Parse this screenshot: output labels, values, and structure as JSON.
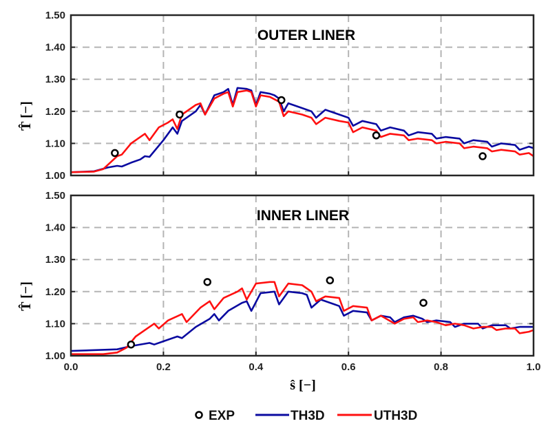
{
  "colors": {
    "exp": "#000000",
    "th3d": "#0a0aa0",
    "uth3d": "#ff1010",
    "grid": "#b4b4b4",
    "axis": "#262626"
  },
  "legend": [
    {
      "label": "EXP",
      "marker": "circle"
    },
    {
      "label": "TH3D",
      "marker": "line"
    },
    {
      "label": "UTH3D",
      "marker": "line"
    }
  ],
  "chart_data": [
    {
      "type": "line",
      "title": "OUTER LINER",
      "xlabel": "",
      "ylabel": "T̂ [−]",
      "xlim": [
        0,
        1
      ],
      "ylim": [
        1.0,
        1.5
      ],
      "xticks": [],
      "yticks": [
        "1.00",
        "1.10",
        "1.20",
        "1.30",
        "1.40",
        "1.50"
      ],
      "grid": true,
      "series": [
        {
          "name": "EXP",
          "kind": "scatter",
          "points": [
            [
              0.095,
              1.07
            ],
            [
              0.235,
              1.19
            ],
            [
              0.455,
              1.235
            ],
            [
              0.66,
              1.125
            ],
            [
              0.89,
              1.06
            ]
          ]
        },
        {
          "name": "TH3D",
          "kind": "line",
          "points": [
            [
              0,
              1.01
            ],
            [
              0.05,
              1.013
            ],
            [
              0.08,
              1.025
            ],
            [
              0.1,
              1.03
            ],
            [
              0.11,
              1.028
            ],
            [
              0.13,
              1.04
            ],
            [
              0.15,
              1.05
            ],
            [
              0.16,
              1.06
            ],
            [
              0.17,
              1.058
            ],
            [
              0.2,
              1.11
            ],
            [
              0.215,
              1.14
            ],
            [
              0.22,
              1.15
            ],
            [
              0.23,
              1.13
            ],
            [
              0.24,
              1.17
            ],
            [
              0.27,
              1.2
            ],
            [
              0.28,
              1.22
            ],
            [
              0.29,
              1.19
            ],
            [
              0.31,
              1.25
            ],
            [
              0.33,
              1.26
            ],
            [
              0.34,
              1.27
            ],
            [
              0.35,
              1.22
            ],
            [
              0.36,
              1.273
            ],
            [
              0.38,
              1.27
            ],
            [
              0.39,
              1.265
            ],
            [
              0.4,
              1.22
            ],
            [
              0.41,
              1.26
            ],
            [
              0.43,
              1.255
            ],
            [
              0.44,
              1.25
            ],
            [
              0.45,
              1.24
            ],
            [
              0.46,
              1.2
            ],
            [
              0.47,
              1.225
            ],
            [
              0.5,
              1.21
            ],
            [
              0.52,
              1.2
            ],
            [
              0.53,
              1.18
            ],
            [
              0.55,
              1.205
            ],
            [
              0.58,
              1.19
            ],
            [
              0.6,
              1.18
            ],
            [
              0.61,
              1.155
            ],
            [
              0.63,
              1.17
            ],
            [
              0.66,
              1.16
            ],
            [
              0.67,
              1.14
            ],
            [
              0.69,
              1.15
            ],
            [
              0.72,
              1.14
            ],
            [
              0.73,
              1.125
            ],
            [
              0.75,
              1.135
            ],
            [
              0.78,
              1.13
            ],
            [
              0.79,
              1.115
            ],
            [
              0.81,
              1.12
            ],
            [
              0.84,
              1.115
            ],
            [
              0.85,
              1.1
            ],
            [
              0.87,
              1.11
            ],
            [
              0.9,
              1.105
            ],
            [
              0.91,
              1.09
            ],
            [
              0.93,
              1.1
            ],
            [
              0.96,
              1.095
            ],
            [
              0.97,
              1.08
            ],
            [
              0.99,
              1.09
            ],
            [
              1.0,
              1.085
            ]
          ]
        },
        {
          "name": "UTH3D",
          "kind": "line",
          "points": [
            [
              0,
              1.01
            ],
            [
              0.05,
              1.012
            ],
            [
              0.07,
              1.02
            ],
            [
              0.1,
              1.06
            ],
            [
              0.11,
              1.065
            ],
            [
              0.13,
              1.1
            ],
            [
              0.15,
              1.12
            ],
            [
              0.16,
              1.13
            ],
            [
              0.17,
              1.11
            ],
            [
              0.19,
              1.15
            ],
            [
              0.21,
              1.165
            ],
            [
              0.22,
              1.175
            ],
            [
              0.23,
              1.145
            ],
            [
              0.24,
              1.19
            ],
            [
              0.27,
              1.22
            ],
            [
              0.28,
              1.225
            ],
            [
              0.29,
              1.19
            ],
            [
              0.31,
              1.24
            ],
            [
              0.33,
              1.255
            ],
            [
              0.34,
              1.26
            ],
            [
              0.35,
              1.215
            ],
            [
              0.36,
              1.26
            ],
            [
              0.38,
              1.265
            ],
            [
              0.39,
              1.26
            ],
            [
              0.4,
              1.215
            ],
            [
              0.41,
              1.25
            ],
            [
              0.43,
              1.245
            ],
            [
              0.45,
              1.23
            ],
            [
              0.46,
              1.185
            ],
            [
              0.47,
              1.2
            ],
            [
              0.5,
              1.19
            ],
            [
              0.52,
              1.18
            ],
            [
              0.53,
              1.16
            ],
            [
              0.55,
              1.18
            ],
            [
              0.58,
              1.17
            ],
            [
              0.6,
              1.165
            ],
            [
              0.61,
              1.135
            ],
            [
              0.63,
              1.15
            ],
            [
              0.66,
              1.14
            ],
            [
              0.67,
              1.12
            ],
            [
              0.69,
              1.13
            ],
            [
              0.72,
              1.125
            ],
            [
              0.73,
              1.11
            ],
            [
              0.75,
              1.115
            ],
            [
              0.78,
              1.11
            ],
            [
              0.79,
              1.1
            ],
            [
              0.81,
              1.105
            ],
            [
              0.84,
              1.1
            ],
            [
              0.85,
              1.085
            ],
            [
              0.87,
              1.09
            ],
            [
              0.9,
              1.085
            ],
            [
              0.91,
              1.075
            ],
            [
              0.93,
              1.08
            ],
            [
              0.96,
              1.075
            ],
            [
              0.97,
              1.065
            ],
            [
              0.99,
              1.07
            ],
            [
              1.0,
              1.06
            ]
          ]
        }
      ]
    },
    {
      "type": "line",
      "title": "INNER LINER",
      "xlabel": "ŝ [−]",
      "ylabel": "T̂ [−]",
      "xlim": [
        0,
        1
      ],
      "ylim": [
        1.0,
        1.5
      ],
      "xticks": [
        "0.0",
        "0.2",
        "0.4",
        "0.6",
        "0.8",
        "1.0"
      ],
      "yticks": [
        "1.00",
        "1.10",
        "1.20",
        "1.30",
        "1.40",
        "1.50"
      ],
      "grid": true,
      "series": [
        {
          "name": "EXP",
          "kind": "scatter",
          "points": [
            [
              0.13,
              1.035
            ],
            [
              0.295,
              1.23
            ],
            [
              0.56,
              1.235
            ],
            [
              0.762,
              1.165
            ]
          ]
        },
        {
          "name": "TH3D",
          "kind": "line",
          "points": [
            [
              0,
              1.015
            ],
            [
              0.1,
              1.02
            ],
            [
              0.13,
              1.03
            ],
            [
              0.17,
              1.04
            ],
            [
              0.18,
              1.035
            ],
            [
              0.2,
              1.045
            ],
            [
              0.23,
              1.06
            ],
            [
              0.24,
              1.055
            ],
            [
              0.27,
              1.09
            ],
            [
              0.3,
              1.115
            ],
            [
              0.31,
              1.13
            ],
            [
              0.32,
              1.11
            ],
            [
              0.34,
              1.14
            ],
            [
              0.37,
              1.165
            ],
            [
              0.38,
              1.17
            ],
            [
              0.39,
              1.14
            ],
            [
              0.41,
              1.195
            ],
            [
              0.44,
              1.2
            ],
            [
              0.45,
              1.16
            ],
            [
              0.47,
              1.2
            ],
            [
              0.5,
              1.195
            ],
            [
              0.51,
              1.19
            ],
            [
              0.52,
              1.15
            ],
            [
              0.54,
              1.175
            ],
            [
              0.57,
              1.16
            ],
            [
              0.58,
              1.155
            ],
            [
              0.59,
              1.125
            ],
            [
              0.61,
              1.14
            ],
            [
              0.64,
              1.135
            ],
            [
              0.65,
              1.11
            ],
            [
              0.67,
              1.125
            ],
            [
              0.69,
              1.12
            ],
            [
              0.7,
              1.105
            ],
            [
              0.72,
              1.12
            ],
            [
              0.74,
              1.125
            ],
            [
              0.76,
              1.115
            ],
            [
              0.77,
              1.105
            ],
            [
              0.79,
              1.11
            ],
            [
              0.82,
              1.105
            ],
            [
              0.83,
              1.09
            ],
            [
              0.85,
              1.1
            ],
            [
              0.88,
              1.1
            ],
            [
              0.89,
              1.085
            ],
            [
              0.91,
              1.095
            ],
            [
              0.94,
              1.095
            ],
            [
              0.95,
              1.085
            ],
            [
              0.97,
              1.09
            ],
            [
              0.99,
              1.09
            ],
            [
              1.0,
              1.09
            ]
          ]
        },
        {
          "name": "UTH3D",
          "kind": "line",
          "points": [
            [
              0,
              1.005
            ],
            [
              0.07,
              1.005
            ],
            [
              0.1,
              1.01
            ],
            [
              0.12,
              1.025
            ],
            [
              0.14,
              1.06
            ],
            [
              0.17,
              1.09
            ],
            [
              0.18,
              1.1
            ],
            [
              0.19,
              1.085
            ],
            [
              0.21,
              1.11
            ],
            [
              0.24,
              1.13
            ],
            [
              0.25,
              1.105
            ],
            [
              0.28,
              1.15
            ],
            [
              0.3,
              1.17
            ],
            [
              0.31,
              1.145
            ],
            [
              0.33,
              1.18
            ],
            [
              0.36,
              1.2
            ],
            [
              0.37,
              1.21
            ],
            [
              0.38,
              1.175
            ],
            [
              0.4,
              1.225
            ],
            [
              0.43,
              1.23
            ],
            [
              0.44,
              1.23
            ],
            [
              0.45,
              1.185
            ],
            [
              0.47,
              1.225
            ],
            [
              0.5,
              1.22
            ],
            [
              0.52,
              1.2
            ],
            [
              0.53,
              1.17
            ],
            [
              0.55,
              1.185
            ],
            [
              0.58,
              1.18
            ],
            [
              0.59,
              1.14
            ],
            [
              0.61,
              1.155
            ],
            [
              0.64,
              1.15
            ],
            [
              0.65,
              1.11
            ],
            [
              0.67,
              1.125
            ],
            [
              0.7,
              1.1
            ],
            [
              0.72,
              1.115
            ],
            [
              0.74,
              1.12
            ],
            [
              0.75,
              1.105
            ],
            [
              0.77,
              1.11
            ],
            [
              0.79,
              1.105
            ],
            [
              0.81,
              1.095
            ],
            [
              0.83,
              1.1
            ],
            [
              0.85,
              1.095
            ],
            [
              0.87,
              1.085
            ],
            [
              0.89,
              1.09
            ],
            [
              0.91,
              1.09
            ],
            [
              0.92,
              1.08
            ],
            [
              0.94,
              1.085
            ],
            [
              0.96,
              1.085
            ],
            [
              0.97,
              1.07
            ],
            [
              0.99,
              1.075
            ],
            [
              1.0,
              1.08
            ]
          ]
        }
      ]
    }
  ]
}
